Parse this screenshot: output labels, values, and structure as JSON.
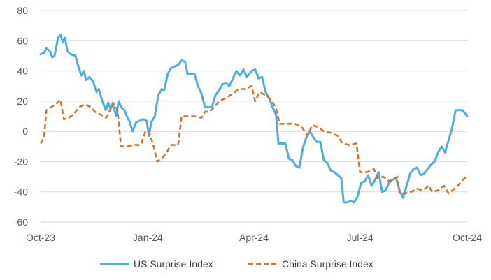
{
  "chart_data": {
    "type": "line",
    "title": "",
    "xlabel": "",
    "ylabel": "",
    "ylim": [
      -60,
      80
    ],
    "y_ticks": [
      -60,
      -40,
      -20,
      0,
      20,
      40,
      60,
      80
    ],
    "x_range": [
      "2023-10-01",
      "2024-10-01"
    ],
    "x_ticks": [
      {
        "date": "2023-10-01",
        "label": "Oct-23"
      },
      {
        "date": "2024-01-01",
        "label": "Jan-24"
      },
      {
        "date": "2024-04-01",
        "label": "Apr-24"
      },
      {
        "date": "2024-07-01",
        "label": "Jul-24"
      },
      {
        "date": "2024-10-01",
        "label": "Oct-24"
      }
    ],
    "grid": "horizontal",
    "legend_position": "bottom",
    "series": [
      {
        "name": "US Surprise Index",
        "color": "#4eaee0",
        "style": "solid",
        "points": [
          [
            "2023-10-01",
            51
          ],
          [
            "2023-10-04",
            52
          ],
          [
            "2023-10-06",
            55
          ],
          [
            "2023-10-09",
            53
          ],
          [
            "2023-10-11",
            49
          ],
          [
            "2023-10-13",
            50
          ],
          [
            "2023-10-16",
            62
          ],
          [
            "2023-10-18",
            64
          ],
          [
            "2023-10-20",
            59
          ],
          [
            "2023-10-22",
            62
          ],
          [
            "2023-10-24",
            53
          ],
          [
            "2023-10-27",
            51
          ],
          [
            "2023-10-31",
            50
          ],
          [
            "2023-11-02",
            44
          ],
          [
            "2023-11-05",
            37
          ],
          [
            "2023-11-07",
            40
          ],
          [
            "2023-11-09",
            34
          ],
          [
            "2023-11-12",
            36
          ],
          [
            "2023-11-15",
            33
          ],
          [
            "2023-11-18",
            26
          ],
          [
            "2023-11-20",
            28
          ],
          [
            "2023-11-23",
            20
          ],
          [
            "2023-11-26",
            14
          ],
          [
            "2023-11-28",
            19
          ],
          [
            "2023-11-30",
            15
          ],
          [
            "2023-12-02",
            18
          ],
          [
            "2023-12-05",
            10
          ],
          [
            "2023-12-07",
            20
          ],
          [
            "2023-12-09",
            16
          ],
          [
            "2023-12-12",
            14
          ],
          [
            "2023-12-14",
            10
          ],
          [
            "2023-12-16",
            7
          ],
          [
            "2023-12-19",
            0
          ],
          [
            "2023-12-22",
            6
          ],
          [
            "2023-12-25",
            7
          ],
          [
            "2023-12-28",
            8
          ],
          [
            "2023-12-31",
            7
          ],
          [
            "2024-01-02",
            -3
          ],
          [
            "2024-01-04",
            6
          ],
          [
            "2024-01-07",
            10
          ],
          [
            "2024-01-10",
            24
          ],
          [
            "2024-01-13",
            28
          ],
          [
            "2024-01-15",
            27
          ],
          [
            "2024-01-18",
            38
          ],
          [
            "2024-01-21",
            42
          ],
          [
            "2024-01-24",
            43
          ],
          [
            "2024-01-27",
            44
          ],
          [
            "2024-01-30",
            47
          ],
          [
            "2024-02-02",
            46
          ],
          [
            "2024-02-04",
            38
          ],
          [
            "2024-02-07",
            38
          ],
          [
            "2024-02-10",
            38
          ],
          [
            "2024-02-13",
            30
          ],
          [
            "2024-02-16",
            25
          ],
          [
            "2024-02-19",
            16
          ],
          [
            "2024-02-22",
            16
          ],
          [
            "2024-02-25",
            16
          ],
          [
            "2024-02-28",
            24
          ],
          [
            "2024-03-02",
            27
          ],
          [
            "2024-03-05",
            31
          ],
          [
            "2024-03-08",
            32
          ],
          [
            "2024-03-11",
            30
          ],
          [
            "2024-03-14",
            35
          ],
          [
            "2024-03-17",
            40
          ],
          [
            "2024-03-20",
            37
          ],
          [
            "2024-03-23",
            41
          ],
          [
            "2024-03-26",
            36
          ],
          [
            "2024-03-30",
            40
          ],
          [
            "2024-04-02",
            41
          ],
          [
            "2024-04-05",
            35
          ],
          [
            "2024-04-08",
            36
          ],
          [
            "2024-04-11",
            26
          ],
          [
            "2024-04-14",
            22
          ],
          [
            "2024-04-17",
            16
          ],
          [
            "2024-04-20",
            11
          ],
          [
            "2024-04-22",
            -8
          ],
          [
            "2024-04-25",
            -8
          ],
          [
            "2024-04-28",
            -8
          ],
          [
            "2024-05-01",
            -18
          ],
          [
            "2024-05-04",
            -19
          ],
          [
            "2024-05-07",
            -23
          ],
          [
            "2024-05-10",
            -24
          ],
          [
            "2024-05-13",
            -11
          ],
          [
            "2024-05-16",
            -4
          ],
          [
            "2024-05-19",
            0
          ],
          [
            "2024-05-22",
            -4
          ],
          [
            "2024-05-25",
            -7
          ],
          [
            "2024-05-28",
            -7
          ],
          [
            "2024-05-31",
            -19
          ],
          [
            "2024-06-03",
            -21
          ],
          [
            "2024-06-06",
            -26
          ],
          [
            "2024-06-09",
            -27
          ],
          [
            "2024-06-12",
            -29
          ],
          [
            "2024-06-15",
            -31
          ],
          [
            "2024-06-17",
            -47
          ],
          [
            "2024-06-20",
            -47
          ],
          [
            "2024-06-23",
            -46
          ],
          [
            "2024-06-26",
            -47
          ],
          [
            "2024-06-29",
            -43
          ],
          [
            "2024-07-02",
            -34
          ],
          [
            "2024-07-05",
            -33
          ],
          [
            "2024-07-08",
            -29
          ],
          [
            "2024-07-11",
            -36
          ],
          [
            "2024-07-14",
            -32
          ],
          [
            "2024-07-17",
            -27
          ],
          [
            "2024-07-20",
            -40
          ],
          [
            "2024-07-23",
            -39
          ],
          [
            "2024-07-26",
            -34
          ],
          [
            "2024-07-29",
            -32
          ],
          [
            "2024-08-01",
            -31
          ],
          [
            "2024-08-04",
            -39
          ],
          [
            "2024-08-07",
            -44
          ],
          [
            "2024-08-10",
            -36
          ],
          [
            "2024-08-13",
            -28
          ],
          [
            "2024-08-16",
            -25
          ],
          [
            "2024-08-19",
            -24
          ],
          [
            "2024-08-22",
            -29
          ],
          [
            "2024-08-25",
            -28
          ],
          [
            "2024-08-28",
            -25
          ],
          [
            "2024-08-31",
            -22
          ],
          [
            "2024-09-03",
            -20
          ],
          [
            "2024-09-06",
            -14
          ],
          [
            "2024-09-09",
            -10
          ],
          [
            "2024-09-12",
            -14
          ],
          [
            "2024-09-15",
            -6
          ],
          [
            "2024-09-18",
            2
          ],
          [
            "2024-09-21",
            14
          ],
          [
            "2024-09-24",
            14
          ],
          [
            "2024-09-27",
            14
          ],
          [
            "2024-10-01",
            10
          ]
        ]
      },
      {
        "name": "China Surprise Index",
        "color": "#cf7534",
        "style": "dashed",
        "points": [
          [
            "2023-10-01",
            -8
          ],
          [
            "2023-10-04",
            -4
          ],
          [
            "2023-10-06",
            14
          ],
          [
            "2023-10-10",
            16
          ],
          [
            "2023-10-14",
            18
          ],
          [
            "2023-10-18",
            21
          ],
          [
            "2023-10-21",
            8
          ],
          [
            "2023-10-25",
            9
          ],
          [
            "2023-10-29",
            11
          ],
          [
            "2023-11-03",
            16
          ],
          [
            "2023-11-08",
            18
          ],
          [
            "2023-11-13",
            16
          ],
          [
            "2023-11-18",
            12
          ],
          [
            "2023-11-22",
            11
          ],
          [
            "2023-11-26",
            9
          ],
          [
            "2023-11-28",
            11
          ],
          [
            "2023-12-02",
            19
          ],
          [
            "2023-12-06",
            14
          ],
          [
            "2023-12-09",
            -10
          ],
          [
            "2023-12-14",
            -10
          ],
          [
            "2023-12-20",
            -9
          ],
          [
            "2023-12-26",
            -9
          ],
          [
            "2023-12-30",
            0
          ],
          [
            "2024-01-02",
            0
          ],
          [
            "2024-01-06",
            -10
          ],
          [
            "2024-01-09",
            -20
          ],
          [
            "2024-01-13",
            -18
          ],
          [
            "2024-01-17",
            -14
          ],
          [
            "2024-01-21",
            -9
          ],
          [
            "2024-01-27",
            -9
          ],
          [
            "2024-01-30",
            10
          ],
          [
            "2024-02-05",
            10
          ],
          [
            "2024-02-10",
            10
          ],
          [
            "2024-02-16",
            9
          ],
          [
            "2024-02-19",
            13
          ],
          [
            "2024-02-23",
            13
          ],
          [
            "2024-02-27",
            16
          ],
          [
            "2024-03-02",
            20
          ],
          [
            "2024-03-08",
            22
          ],
          [
            "2024-03-14",
            25
          ],
          [
            "2024-03-19",
            28
          ],
          [
            "2024-03-25",
            28
          ],
          [
            "2024-03-30",
            30
          ],
          [
            "2024-04-02",
            20
          ],
          [
            "2024-04-06",
            26
          ],
          [
            "2024-04-11",
            24
          ],
          [
            "2024-04-16",
            21
          ],
          [
            "2024-04-20",
            15
          ],
          [
            "2024-04-23",
            5
          ],
          [
            "2024-04-29",
            5
          ],
          [
            "2024-05-06",
            5
          ],
          [
            "2024-05-12",
            3
          ],
          [
            "2024-05-17",
            -3
          ],
          [
            "2024-05-21",
            4
          ],
          [
            "2024-05-26",
            3
          ],
          [
            "2024-05-31",
            0
          ],
          [
            "2024-06-06",
            -1
          ],
          [
            "2024-06-12",
            -3
          ],
          [
            "2024-06-16",
            -8
          ],
          [
            "2024-06-22",
            -9
          ],
          [
            "2024-06-28",
            -8
          ],
          [
            "2024-07-01",
            -27
          ],
          [
            "2024-07-07",
            -27
          ],
          [
            "2024-07-13",
            -25
          ],
          [
            "2024-07-16",
            -31
          ],
          [
            "2024-07-21",
            -30
          ],
          [
            "2024-07-26",
            -33
          ],
          [
            "2024-08-02",
            -30
          ],
          [
            "2024-08-04",
            -41
          ],
          [
            "2024-08-09",
            -41
          ],
          [
            "2024-08-14",
            -40
          ],
          [
            "2024-08-19",
            -38
          ],
          [
            "2024-08-24",
            -39
          ],
          [
            "2024-08-29",
            -36
          ],
          [
            "2024-09-01",
            -40
          ],
          [
            "2024-09-06",
            -39
          ],
          [
            "2024-09-11",
            -36
          ],
          [
            "2024-09-15",
            -41
          ],
          [
            "2024-09-20",
            -38
          ],
          [
            "2024-09-24",
            -35
          ],
          [
            "2024-10-01",
            -29
          ]
        ]
      }
    ]
  }
}
